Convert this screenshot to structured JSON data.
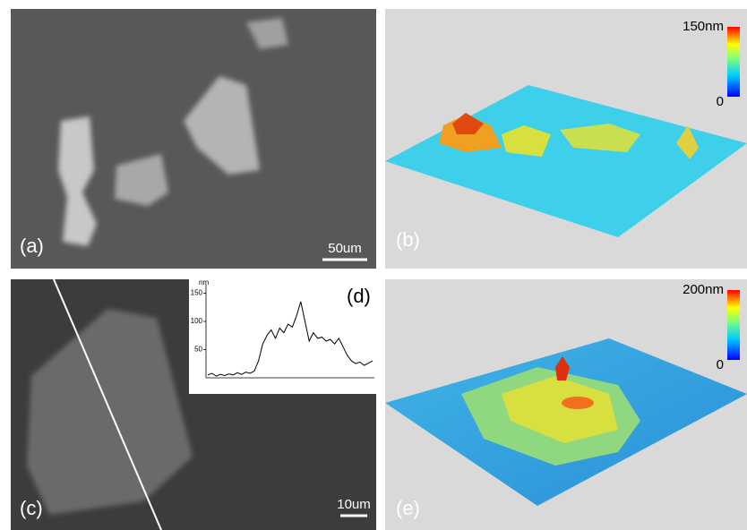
{
  "panels": [
    {
      "label": "(a)",
      "scale_bar": "50um"
    },
    {
      "label": "(b)",
      "colorbar": {
        "max": "150nm",
        "min": "0"
      }
    },
    {
      "label": "(c)",
      "scale_bar": "10um"
    },
    {
      "label": "(d)",
      "profile": {
        "unit": "nm",
        "ylim": [
          0,
          165
        ],
        "yticks": [
          50,
          100,
          150
        ],
        "values": [
          5,
          8,
          3,
          6,
          4,
          7,
          5,
          9,
          6,
          10,
          8,
          12,
          30,
          60,
          75,
          85,
          70,
          88,
          80,
          95,
          90,
          110,
          135,
          100,
          65,
          80,
          70,
          72,
          65,
          68,
          60,
          70,
          55,
          40,
          30,
          25,
          28,
          22,
          26,
          30
        ]
      }
    },
    {
      "label": "(e)",
      "colorbar": {
        "max": "200nm",
        "min": "0"
      }
    }
  ]
}
